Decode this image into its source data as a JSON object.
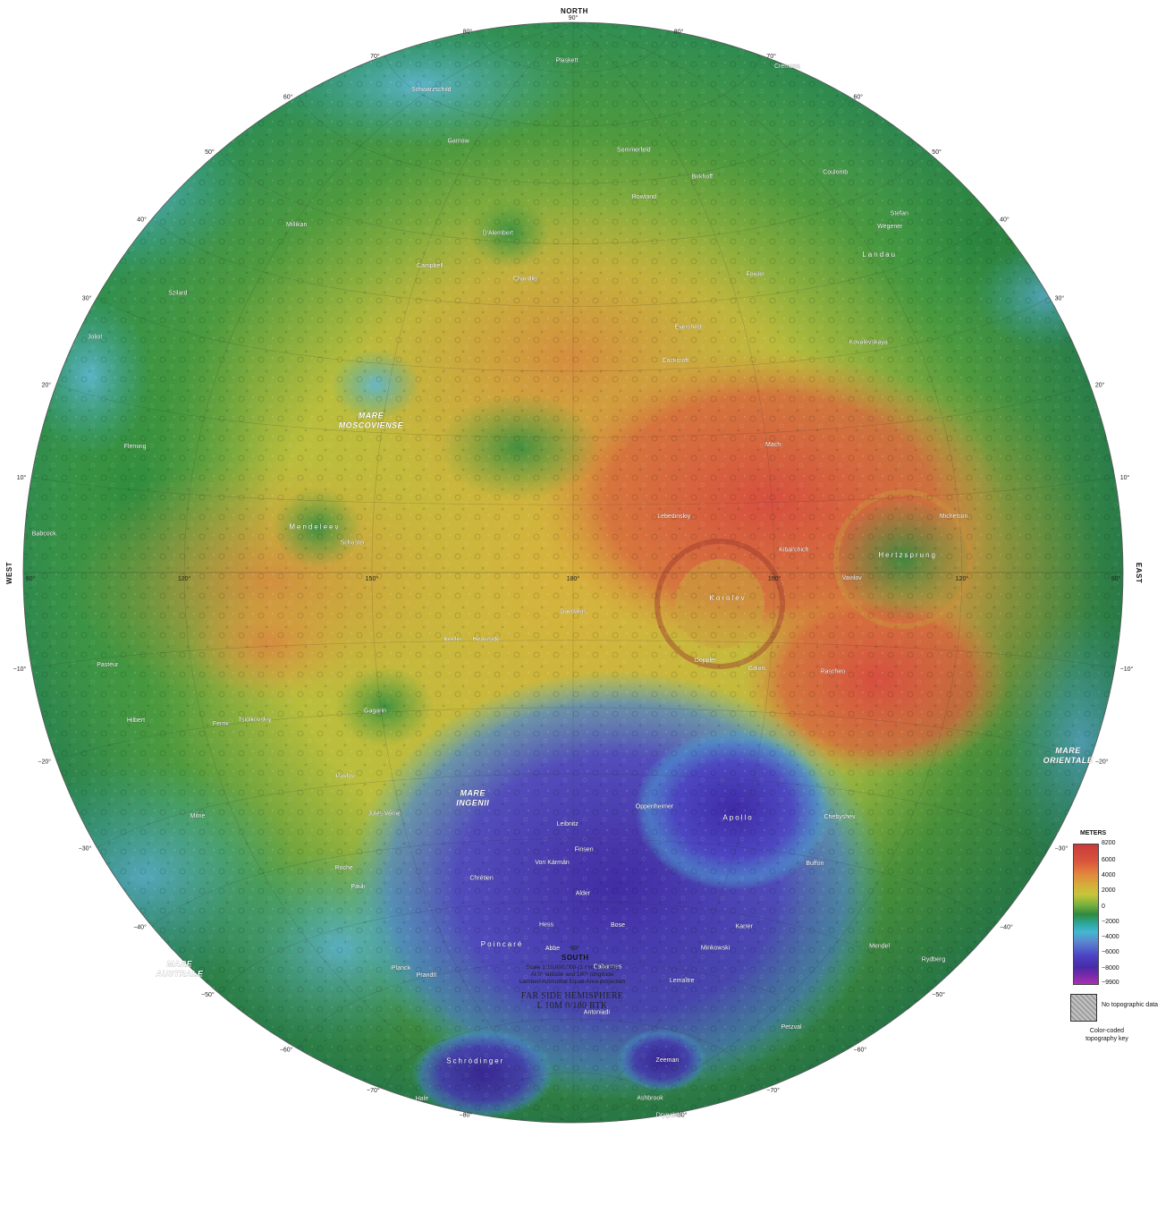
{
  "cardinals": {
    "north": "NORTH",
    "south": "SOUTH",
    "west": "WEST",
    "east": "EAST"
  },
  "latitude_labels": {
    "north": [
      "10°",
      "20°",
      "30°",
      "40°",
      "50°",
      "60°",
      "70°",
      "80°"
    ],
    "south": [
      "−10°",
      "−20°",
      "−30°",
      "−40°",
      "−50°",
      "−60°",
      "−70°",
      "−80°"
    ],
    "pole_north": "90°",
    "pole_south": "−90°"
  },
  "longitude_labels": [
    "90°",
    "120°",
    "150°",
    "180°",
    "150°",
    "120°",
    "90°"
  ],
  "maria": [
    {
      "lines": [
        "MARE",
        "MOSCOVIENSE"
      ],
      "lat": 22,
      "lon": 148
    },
    {
      "lines": [
        "MARE",
        "INGENII"
      ],
      "lat": -33,
      "lon": 163
    },
    {
      "lines": [
        "MARE",
        "ORIENTALE"
      ],
      "lat": -20,
      "lon": -95
    },
    {
      "lines": [
        "MARE",
        "AUSTRALE"
      ],
      "lat": -45,
      "lon": 88
    }
  ],
  "basins": [
    {
      "name": "Korolev",
      "lat": -4,
      "lon": -157
    },
    {
      "name": "Apollo",
      "lat": -36,
      "lon": -151
    },
    {
      "name": "Poincaré",
      "lat": -57,
      "lon": 163
    },
    {
      "name": "Hertzsprung",
      "lat": 2,
      "lon": -129
    },
    {
      "name": "Landau",
      "lat": 42,
      "lon": -119
    },
    {
      "name": "Mendeleev",
      "lat": 6,
      "lon": 141
    },
    {
      "name": "Schrödinger",
      "lat": -75,
      "lon": 132
    }
  ],
  "features": [
    {
      "name": "Tsiolkovskiy",
      "lat": -20,
      "lon": 129
    },
    {
      "name": "Gagarin",
      "lat": -20,
      "lon": 149
    },
    {
      "name": "Leibnitz",
      "lat": -38,
      "lon": 179
    },
    {
      "name": "Von Kármán",
      "lat": -44,
      "lon": 176
    },
    {
      "name": "Oppenheimer",
      "lat": -35,
      "lon": -166
    },
    {
      "name": "Zeeman",
      "lat": -75,
      "lon": -134
    },
    {
      "name": "Antoniadi",
      "lat": -69,
      "lon": -172
    },
    {
      "name": "Campbell",
      "lat": 45,
      "lon": 152
    },
    {
      "name": "D'Alembert",
      "lat": 51,
      "lon": 164
    },
    {
      "name": "Mach",
      "lat": 18,
      "lon": -149
    },
    {
      "name": "Paschen",
      "lat": -14,
      "lon": -140
    },
    {
      "name": "Galois",
      "lat": -14,
      "lon": -152
    },
    {
      "name": "Daedalus",
      "lat": -6,
      "lon": 180
    },
    {
      "name": "Fermi",
      "lat": -20,
      "lon": 123
    },
    {
      "name": "Jules Verne",
      "lat": -35,
      "lon": 147
    },
    {
      "name": "Birkhoff",
      "lat": 59,
      "lon": -147
    },
    {
      "name": "Rowland",
      "lat": 57,
      "lon": -163
    },
    {
      "name": "Sommerfeld",
      "lat": 65,
      "lon": -162
    },
    {
      "name": "Plaskett",
      "lat": 82,
      "lon": 175
    },
    {
      "name": "Coulomb",
      "lat": 54,
      "lon": -115
    },
    {
      "name": "Fowler",
      "lat": 43,
      "lon": -145
    },
    {
      "name": "Schwarzschild",
      "lat": 71,
      "lon": 121
    },
    {
      "name": "Gamow",
      "lat": 65,
      "lon": 145
    },
    {
      "name": "Fleming",
      "lat": 15,
      "lon": 109
    },
    {
      "name": "Joliot",
      "lat": 26,
      "lon": 94
    },
    {
      "name": "Babcock",
      "lat": 4,
      "lon": 94
    },
    {
      "name": "Milne",
      "lat": -31,
      "lon": 113
    },
    {
      "name": "Pasteur",
      "lat": -11,
      "lon": 105
    },
    {
      "name": "Hilbert",
      "lat": -18,
      "lon": 108
    },
    {
      "name": "Lemaître",
      "lat": -62,
      "lon": -150
    },
    {
      "name": "Minkowski",
      "lat": -56,
      "lon": -146
    },
    {
      "name": "Hess",
      "lat": -54,
      "lon": 174
    },
    {
      "name": "Bose",
      "lat": -54,
      "lon": -170
    },
    {
      "name": "Abbe",
      "lat": -58,
      "lon": 175
    },
    {
      "name": "Cabannes",
      "lat": -61,
      "lon": -171
    },
    {
      "name": "Chebyshev",
      "lat": -34,
      "lon": -133
    },
    {
      "name": "Mendel",
      "lat": -49,
      "lon": -110
    },
    {
      "name": "Rydberg",
      "lat": -47,
      "lon": -96
    },
    {
      "name": "Cremona",
      "lat": 67,
      "lon": -91
    },
    {
      "name": "Lebedinskiy",
      "lat": 8,
      "lon": -165
    },
    {
      "name": "Kibal'chich",
      "lat": 3,
      "lon": -147
    },
    {
      "name": "Doppler",
      "lat": -13,
      "lon": -160
    },
    {
      "name": "Vavilov",
      "lat": -1,
      "lon": -138
    },
    {
      "name": "Michelson",
      "lat": 7,
      "lon": -121
    },
    {
      "name": "Schuster",
      "lat": 4,
      "lon": 147
    },
    {
      "name": "Keeler",
      "lat": -10,
      "lon": 162
    },
    {
      "name": "Heaviside",
      "lat": -10,
      "lon": 167
    },
    {
      "name": "Pavlov",
      "lat": -29,
      "lon": 142
    },
    {
      "name": "Roche",
      "lat": -42,
      "lon": 136
    },
    {
      "name": "Pauli",
      "lat": -45,
      "lon": 137
    },
    {
      "name": "Planck",
      "lat": -58,
      "lon": 136
    },
    {
      "name": "Prandtl",
      "lat": -60,
      "lon": 141
    },
    {
      "name": "Ashbrook",
      "lat": -81,
      "lon": -113
    },
    {
      "name": "Drygalski",
      "lat": -80,
      "lon": -87
    },
    {
      "name": "Hale",
      "lat": -74,
      "lon": 91
    },
    {
      "name": "Petzval",
      "lat": -63,
      "lon": -110
    },
    {
      "name": "Karrer",
      "lat": -52,
      "lon": -142
    },
    {
      "name": "Alder",
      "lat": -49,
      "lon": -178
    },
    {
      "name": "Finsen",
      "lat": -42,
      "lon": -178
    },
    {
      "name": "Chrétien",
      "lat": -46,
      "lon": 162
    },
    {
      "name": "Buffon",
      "lat": -41,
      "lon": -134
    },
    {
      "name": "Kovalevskaya",
      "lat": 31,
      "lon": -129
    },
    {
      "name": "Stefan",
      "lat": 46,
      "lon": -109
    },
    {
      "name": "Wegener",
      "lat": 45,
      "lon": -113
    },
    {
      "name": "Evershed",
      "lat": 36,
      "lon": -160
    },
    {
      "name": "Cockcroft",
      "lat": 31,
      "lon": -163
    },
    {
      "name": "Chandler",
      "lat": 44,
      "lon": 171
    },
    {
      "name": "Millikan",
      "lat": 47,
      "lon": 121
    },
    {
      "name": "Szilard",
      "lat": 34,
      "lon": 106
    }
  ],
  "info": {
    "scale": "Scale 1:10,000,000 (1 mm = 10 km)",
    "scale_detail": "At 0° latitude and 180° longitude",
    "projection": "Lambert Azimuthal Equal-Area projection",
    "title": "FAR SIDE HEMISPHERE",
    "code": "L 10M 0/180 RTK"
  },
  "legend": {
    "unit": "METERS",
    "ticks": [
      "8200",
      "6000",
      "4000",
      "2000",
      "0",
      "−2000",
      "−4000",
      "−6000",
      "−8000",
      "−9900"
    ],
    "values": [
      8200,
      6000,
      4000,
      2000,
      0,
      -2000,
      -4000,
      -6000,
      -8000,
      -9900
    ],
    "no_data": "No topographic data",
    "caption_1": "Color-coded",
    "caption_2": "topography key"
  },
  "colors": {
    "high": "#c93a3a",
    "mid_high": "#d3b23a",
    "mid": "#2f8a3e",
    "low": "#46b6d2",
    "lowest": "#4a2aa8"
  }
}
